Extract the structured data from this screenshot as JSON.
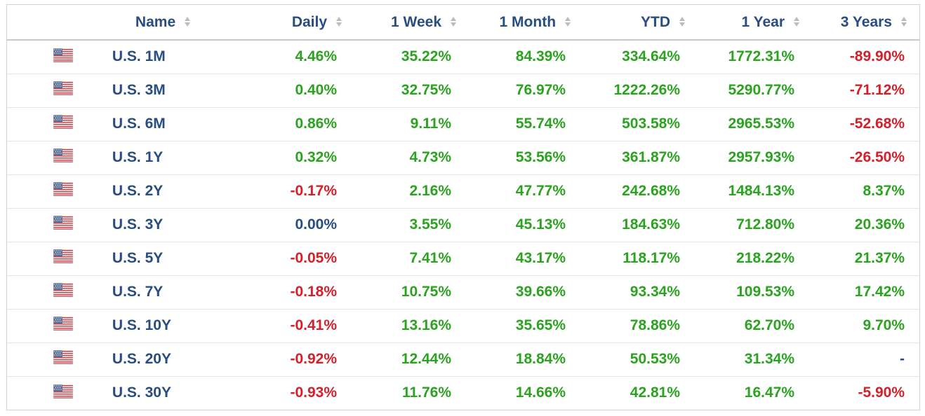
{
  "colors": {
    "positive": "#2aa31f",
    "negative": "#d4202a",
    "neutral": "#284d82",
    "header": "#284d82"
  },
  "columns": {
    "name": "Name",
    "daily": "Daily",
    "week": "1 Week",
    "month": "1 Month",
    "ytd": "YTD",
    "year": "1 Year",
    "three_years": "3 Years"
  },
  "rows": [
    {
      "flag_icon": "us-flag-icon",
      "name": "U.S. 1M",
      "daily": "4.46%",
      "week": "35.22%",
      "month": "84.39%",
      "ytd": "334.64%",
      "year": "1772.31%",
      "three_years": "-89.90%"
    },
    {
      "flag_icon": "us-flag-icon",
      "name": "U.S. 3M",
      "daily": "0.40%",
      "week": "32.75%",
      "month": "76.97%",
      "ytd": "1222.26%",
      "year": "5290.77%",
      "three_years": "-71.12%"
    },
    {
      "flag_icon": "us-flag-icon",
      "name": "U.S. 6M",
      "daily": "0.86%",
      "week": "9.11%",
      "month": "55.74%",
      "ytd": "503.58%",
      "year": "2965.53%",
      "three_years": "-52.68%"
    },
    {
      "flag_icon": "us-flag-icon",
      "name": "U.S. 1Y",
      "daily": "0.32%",
      "week": "4.73%",
      "month": "53.56%",
      "ytd": "361.87%",
      "year": "2957.93%",
      "three_years": "-26.50%"
    },
    {
      "flag_icon": "us-flag-icon",
      "name": "U.S. 2Y",
      "daily": "-0.17%",
      "week": "2.16%",
      "month": "47.77%",
      "ytd": "242.68%",
      "year": "1484.13%",
      "three_years": "8.37%"
    },
    {
      "flag_icon": "us-flag-icon",
      "name": "U.S. 3Y",
      "daily": "0.00%",
      "week": "3.55%",
      "month": "45.13%",
      "ytd": "184.63%",
      "year": "712.80%",
      "three_years": "20.36%"
    },
    {
      "flag_icon": "us-flag-icon",
      "name": "U.S. 5Y",
      "daily": "-0.05%",
      "week": "7.41%",
      "month": "43.17%",
      "ytd": "118.17%",
      "year": "218.22%",
      "three_years": "21.37%"
    },
    {
      "flag_icon": "us-flag-icon",
      "name": "U.S. 7Y",
      "daily": "-0.18%",
      "week": "10.75%",
      "month": "39.66%",
      "ytd": "93.34%",
      "year": "109.53%",
      "three_years": "17.42%"
    },
    {
      "flag_icon": "us-flag-icon",
      "name": "U.S. 10Y",
      "daily": "-0.41%",
      "week": "13.16%",
      "month": "35.65%",
      "ytd": "78.86%",
      "year": "62.70%",
      "three_years": "9.70%"
    },
    {
      "flag_icon": "us-flag-icon",
      "name": "U.S. 20Y",
      "daily": "-0.92%",
      "week": "12.44%",
      "month": "18.84%",
      "ytd": "50.53%",
      "year": "31.34%",
      "three_years": "-"
    },
    {
      "flag_icon": "us-flag-icon",
      "name": "U.S. 30Y",
      "daily": "-0.93%",
      "week": "11.76%",
      "month": "14.66%",
      "ytd": "42.81%",
      "year": "16.47%",
      "three_years": "-5.90%"
    }
  ]
}
